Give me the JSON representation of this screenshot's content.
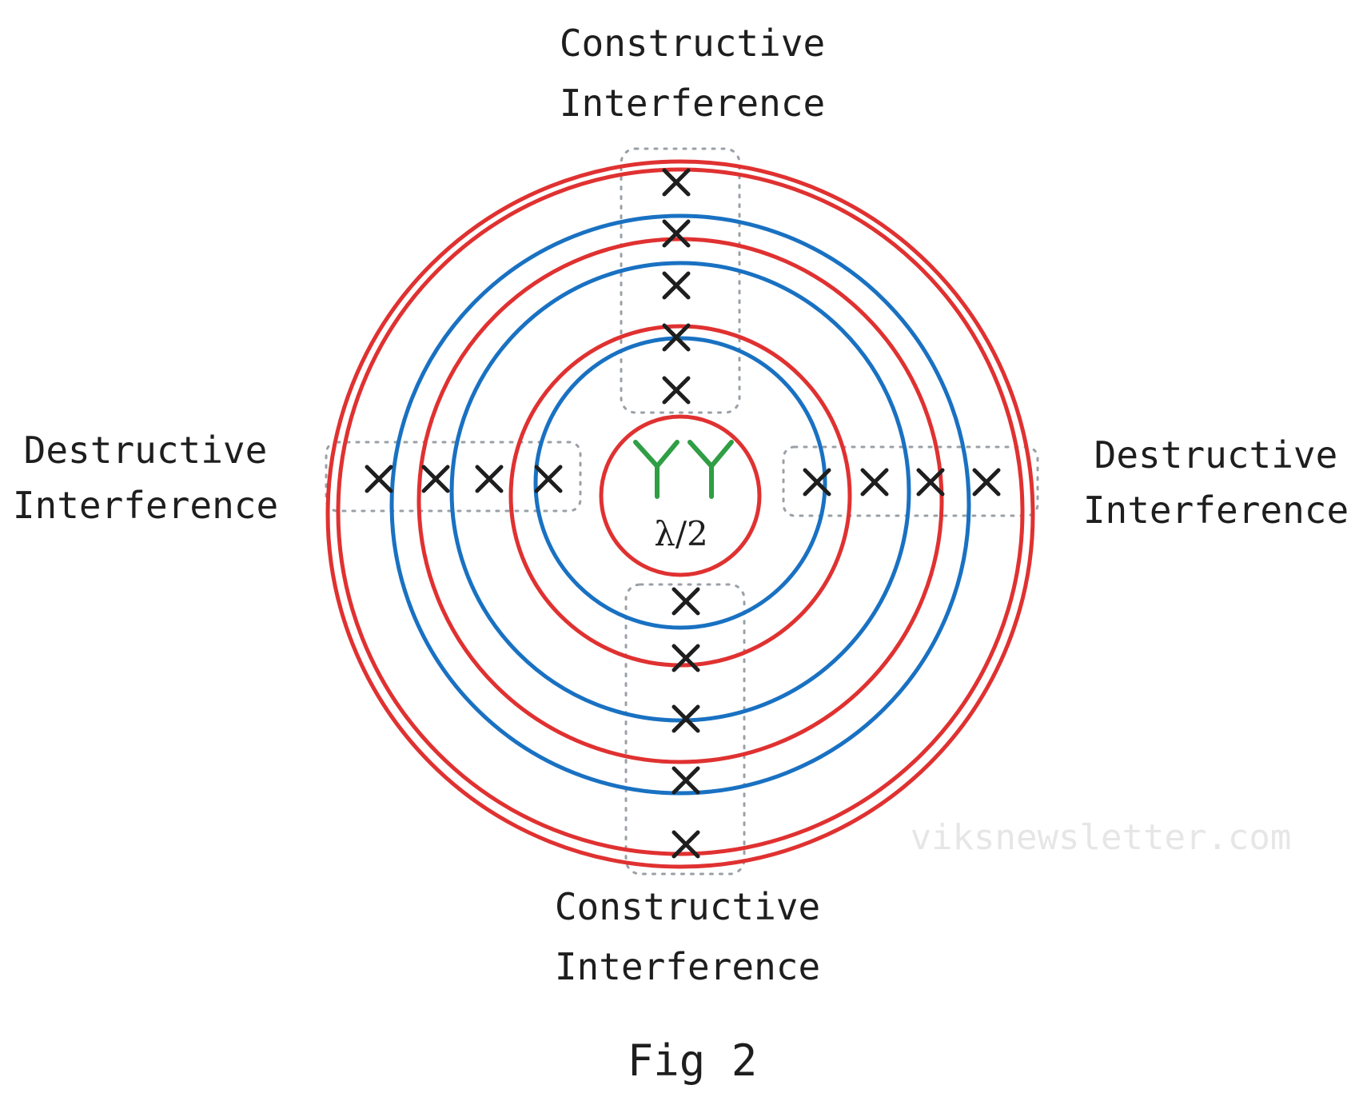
{
  "labels": {
    "top_line1": "Constructive",
    "top_line2": "Interference",
    "bottom_line1": "Constructive",
    "bottom_line2": "Interference",
    "left_line1": "Destructive",
    "left_line2": "Interference",
    "right_line1": "Destructive",
    "right_line2": "Interference",
    "spacing": "λ/2",
    "caption": "Fig 2",
    "watermark": "viksnewsletter.com"
  },
  "colors": {
    "source_a_rings": "#e03131",
    "source_b_rings": "#1971c2",
    "antennas": "#2f9e44",
    "markers": "#1e1e1e",
    "zones": "#9aa0a6"
  },
  "icons": {
    "antenna": "antenna-icon",
    "marker": "cross-mark-icon"
  }
}
